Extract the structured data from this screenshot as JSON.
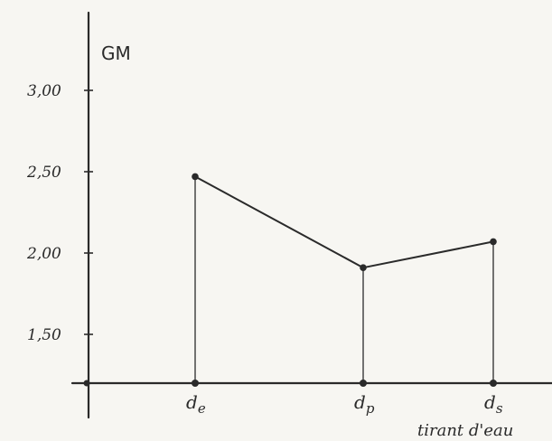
{
  "chart_data": {
    "type": "line",
    "categories": [
      "de",
      "dp",
      "ds"
    ],
    "values": [
      2.47,
      1.91,
      2.07
    ],
    "xlabel": "tirant d'eau",
    "ylabel": "GM",
    "yticks": [
      "3,00",
      "2,50",
      "2,00",
      "1,50"
    ],
    "ytick_values": [
      3.0,
      2.5,
      2.0,
      1.5
    ],
    "ylim": [
      1.2,
      3.4
    ],
    "grid": false,
    "drop_lines": true,
    "colors": {
      "ink": "#2a2a2a",
      "paper": "#f7f6f2"
    }
  }
}
